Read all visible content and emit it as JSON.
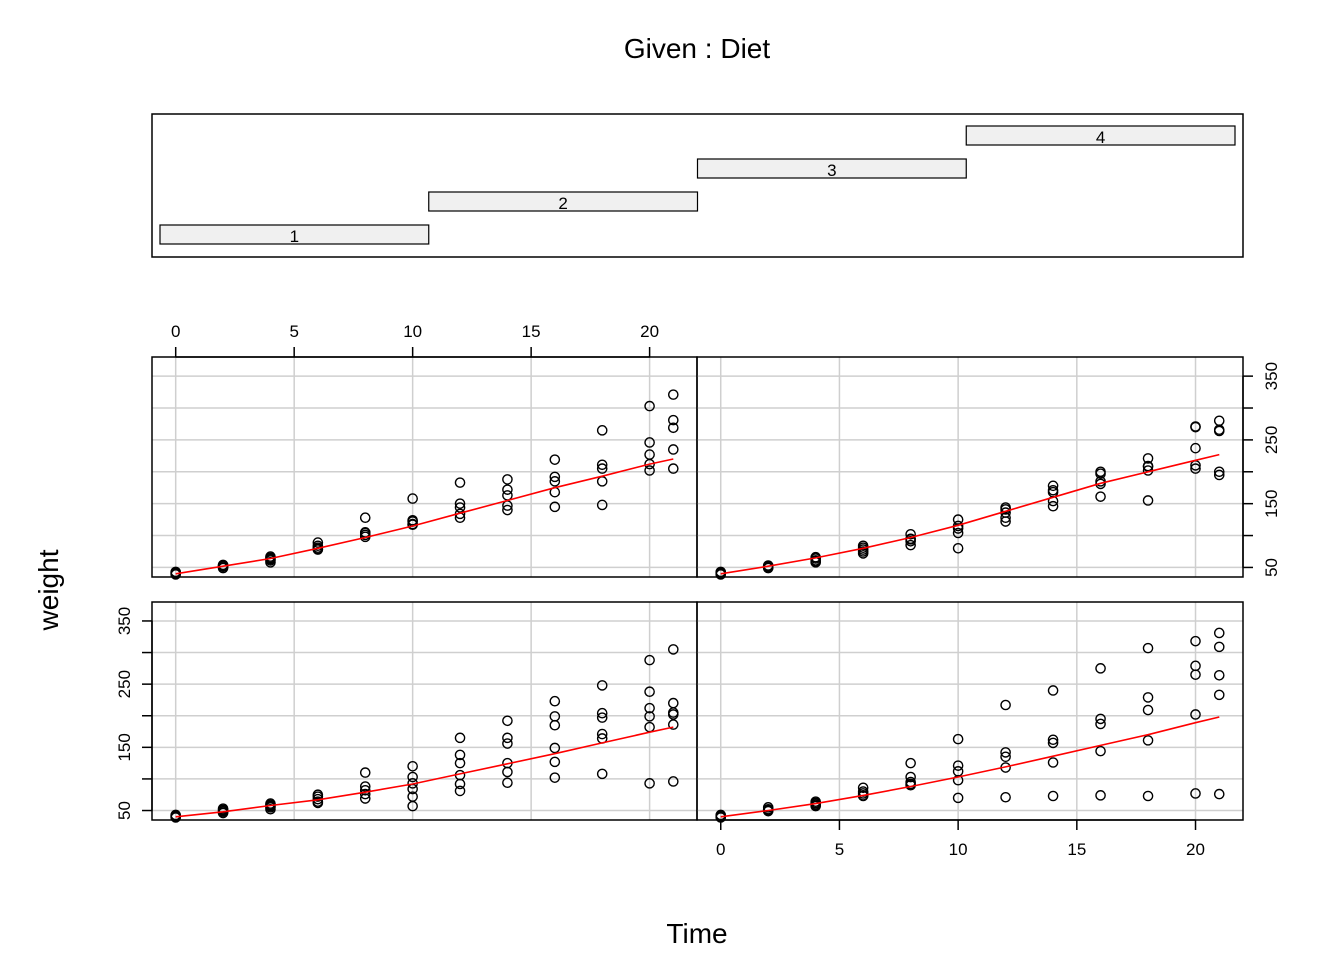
{
  "chart_data": {
    "type": "scatter",
    "title": "Given : Diet",
    "xlabel": "Time",
    "ylabel": "weight",
    "xlim": [
      -1,
      22
    ],
    "ylim": [
      35,
      380
    ],
    "x_ticks": [
      0,
      5,
      10,
      15,
      20
    ],
    "y_ticks": [
      50,
      100,
      150,
      200,
      250,
      300,
      350
    ],
    "y_tick_labels": [
      "50",
      "",
      "150",
      "",
      "250",
      "",
      "350"
    ],
    "grid": true,
    "fit_color": "#ff0000",
    "conditioning": {
      "variable": "Diet",
      "levels": [
        "1",
        "2",
        "3",
        "4"
      ]
    },
    "panels": [
      {
        "diet": "1",
        "points": [
          [
            0,
            42
          ],
          [
            0,
            41
          ],
          [
            0,
            39
          ],
          [
            0,
            40
          ],
          [
            0,
            43
          ],
          [
            2,
            51
          ],
          [
            2,
            49
          ],
          [
            2,
            47
          ],
          [
            2,
            53
          ],
          [
            2,
            46
          ],
          [
            4,
            59
          ],
          [
            4,
            61
          ],
          [
            4,
            55
          ],
          [
            4,
            52
          ],
          [
            4,
            57
          ],
          [
            6,
            64
          ],
          [
            6,
            72
          ],
          [
            6,
            68
          ],
          [
            6,
            75
          ],
          [
            6,
            62
          ],
          [
            8,
            76
          ],
          [
            8,
            82
          ],
          [
            8,
            69
          ],
          [
            8,
            88
          ],
          [
            8,
            110
          ],
          [
            10,
            93
          ],
          [
            10,
            84
          ],
          [
            10,
            103
          ],
          [
            10,
            72
          ],
          [
            10,
            120
          ],
          [
            10,
            57
          ],
          [
            12,
            106
          ],
          [
            12,
            92
          ],
          [
            12,
            125
          ],
          [
            12,
            138
          ],
          [
            12,
            165
          ],
          [
            12,
            81
          ],
          [
            14,
            125
          ],
          [
            14,
            111
          ],
          [
            14,
            156
          ],
          [
            14,
            165
          ],
          [
            14,
            192
          ],
          [
            14,
            94
          ],
          [
            16,
            149
          ],
          [
            16,
            127
          ],
          [
            16,
            185
          ],
          [
            16,
            199
          ],
          [
            16,
            223
          ],
          [
            16,
            102
          ],
          [
            18,
            171
          ],
          [
            18,
            164
          ],
          [
            18,
            204
          ],
          [
            18,
            197
          ],
          [
            18,
            248
          ],
          [
            18,
            108
          ],
          [
            20,
            199
          ],
          [
            20,
            182
          ],
          [
            20,
            238
          ],
          [
            20,
            212
          ],
          [
            20,
            288
          ],
          [
            20,
            93
          ],
          [
            21,
            205
          ],
          [
            21,
            202
          ],
          [
            21,
            220
          ],
          [
            21,
            186
          ],
          [
            21,
            305
          ],
          [
            21,
            96
          ]
        ],
        "fit": [
          [
            0,
            40
          ],
          [
            2,
            48
          ],
          [
            4,
            58
          ],
          [
            6,
            67
          ],
          [
            8,
            79
          ],
          [
            10,
            92
          ],
          [
            12,
            108
          ],
          [
            14,
            124
          ],
          [
            16,
            140
          ],
          [
            18,
            157
          ],
          [
            20,
            174
          ],
          [
            21,
            182
          ]
        ]
      },
      {
        "diet": "2",
        "points": [
          [
            0,
            40
          ],
          [
            0,
            41
          ],
          [
            0,
            43
          ],
          [
            0,
            42
          ],
          [
            0,
            39
          ],
          [
            2,
            50
          ],
          [
            2,
            55
          ],
          [
            2,
            52
          ],
          [
            2,
            51
          ],
          [
            2,
            49
          ],
          [
            4,
            62
          ],
          [
            4,
            64
          ],
          [
            4,
            61
          ],
          [
            4,
            57
          ],
          [
            4,
            59
          ],
          [
            6,
            86
          ],
          [
            6,
            77
          ],
          [
            6,
            74
          ],
          [
            6,
            80
          ],
          [
            6,
            73
          ],
          [
            8,
            125
          ],
          [
            8,
            90
          ],
          [
            8,
            103
          ],
          [
            8,
            92
          ],
          [
            8,
            95
          ],
          [
            10,
            163
          ],
          [
            10,
            112
          ],
          [
            10,
            121
          ],
          [
            10,
            98
          ],
          [
            10,
            70
          ],
          [
            12,
            217
          ],
          [
            12,
            135
          ],
          [
            12,
            142
          ],
          [
            12,
            118
          ],
          [
            12,
            71
          ],
          [
            14,
            240
          ],
          [
            14,
            157
          ],
          [
            14,
            162
          ],
          [
            14,
            126
          ],
          [
            14,
            73
          ],
          [
            16,
            275
          ],
          [
            16,
            187
          ],
          [
            16,
            195
          ],
          [
            16,
            144
          ],
          [
            16,
            74
          ],
          [
            18,
            307
          ],
          [
            18,
            229
          ],
          [
            18,
            209
          ],
          [
            18,
            161
          ],
          [
            18,
            73
          ],
          [
            20,
            318
          ],
          [
            20,
            265
          ],
          [
            20,
            279
          ],
          [
            20,
            202
          ],
          [
            20,
            77
          ],
          [
            21,
            331
          ],
          [
            21,
            264
          ],
          [
            21,
            309
          ],
          [
            21,
            233
          ],
          [
            21,
            76
          ]
        ],
        "fit": [
          [
            0,
            40
          ],
          [
            2,
            50
          ],
          [
            4,
            61
          ],
          [
            6,
            74
          ],
          [
            8,
            88
          ],
          [
            10,
            103
          ],
          [
            12,
            119
          ],
          [
            14,
            136
          ],
          [
            16,
            153
          ],
          [
            18,
            170
          ],
          [
            20,
            189
          ],
          [
            21,
            198
          ]
        ]
      },
      {
        "diet": "3",
        "points": [
          [
            0,
            41
          ],
          [
            0,
            42
          ],
          [
            0,
            40
          ],
          [
            0,
            39
          ],
          [
            0,
            43
          ],
          [
            2,
            53
          ],
          [
            2,
            51
          ],
          [
            2,
            49
          ],
          [
            2,
            52
          ],
          [
            2,
            54
          ],
          [
            4,
            65
          ],
          [
            4,
            61
          ],
          [
            4,
            58
          ],
          [
            4,
            63
          ],
          [
            4,
            67
          ],
          [
            6,
            89
          ],
          [
            6,
            79
          ],
          [
            6,
            81
          ],
          [
            6,
            78
          ],
          [
            6,
            84
          ],
          [
            8,
            98
          ],
          [
            8,
            101
          ],
          [
            8,
            104
          ],
          [
            8,
            128
          ],
          [
            8,
            105
          ],
          [
            10,
            117
          ],
          [
            10,
            118
          ],
          [
            10,
            124
          ],
          [
            10,
            158
          ],
          [
            10,
            122
          ],
          [
            12,
            144
          ],
          [
            12,
            134
          ],
          [
            12,
            150
          ],
          [
            12,
            183
          ],
          [
            12,
            128
          ],
          [
            14,
            163
          ],
          [
            14,
            147
          ],
          [
            14,
            172
          ],
          [
            14,
            188
          ],
          [
            14,
            140
          ],
          [
            16,
            185
          ],
          [
            16,
            168
          ],
          [
            16,
            192
          ],
          [
            16,
            219
          ],
          [
            16,
            145
          ],
          [
            18,
            205
          ],
          [
            18,
            185
          ],
          [
            18,
            211
          ],
          [
            18,
            265
          ],
          [
            18,
            148
          ],
          [
            20,
            212
          ],
          [
            20,
            227
          ],
          [
            20,
            246
          ],
          [
            20,
            303
          ],
          [
            20,
            202
          ],
          [
            21,
            205
          ],
          [
            21,
            281
          ],
          [
            21,
            269
          ],
          [
            21,
            321
          ],
          [
            21,
            235
          ]
        ],
        "fit": [
          [
            0,
            40
          ],
          [
            2,
            52
          ],
          [
            4,
            64
          ],
          [
            6,
            80
          ],
          [
            8,
            97
          ],
          [
            10,
            115
          ],
          [
            12,
            135
          ],
          [
            14,
            155
          ],
          [
            16,
            175
          ],
          [
            18,
            193
          ],
          [
            20,
            212
          ],
          [
            21,
            220
          ]
        ]
      },
      {
        "diet": "4",
        "points": [
          [
            0,
            42
          ],
          [
            0,
            40
          ],
          [
            0,
            41
          ],
          [
            0,
            39
          ],
          [
            0,
            43
          ],
          [
            2,
            51
          ],
          [
            2,
            52
          ],
          [
            2,
            50
          ],
          [
            2,
            53
          ],
          [
            2,
            49
          ],
          [
            4,
            61
          ],
          [
            4,
            64
          ],
          [
            4,
            66
          ],
          [
            4,
            59
          ],
          [
            4,
            58
          ],
          [
            6,
            81
          ],
          [
            6,
            84
          ],
          [
            6,
            78
          ],
          [
            6,
            75
          ],
          [
            6,
            72
          ],
          [
            8,
            102
          ],
          [
            8,
            94
          ],
          [
            8,
            95
          ],
          [
            8,
            91
          ],
          [
            8,
            85
          ],
          [
            10,
            115
          ],
          [
            10,
            125
          ],
          [
            10,
            111
          ],
          [
            10,
            104
          ],
          [
            10,
            80
          ],
          [
            12,
            144
          ],
          [
            12,
            141
          ],
          [
            12,
            128
          ],
          [
            12,
            122
          ],
          [
            12,
            136
          ],
          [
            14,
            171
          ],
          [
            14,
            168
          ],
          [
            14,
            154
          ],
          [
            14,
            146
          ],
          [
            14,
            178
          ],
          [
            16,
            185
          ],
          [
            16,
            197
          ],
          [
            16,
            181
          ],
          [
            16,
            161
          ],
          [
            16,
            200
          ],
          [
            18,
            209
          ],
          [
            18,
            208
          ],
          [
            18,
            202
          ],
          [
            18,
            155
          ],
          [
            18,
            221
          ],
          [
            20,
            237
          ],
          [
            20,
            271
          ],
          [
            20,
            270
          ],
          [
            20,
            210
          ],
          [
            20,
            205
          ],
          [
            21,
            264
          ],
          [
            21,
            266
          ],
          [
            21,
            280
          ],
          [
            21,
            200
          ],
          [
            21,
            195
          ]
        ],
        "fit": [
          [
            0,
            40
          ],
          [
            2,
            52
          ],
          [
            4,
            65
          ],
          [
            6,
            80
          ],
          [
            8,
            97
          ],
          [
            10,
            116
          ],
          [
            12,
            138
          ],
          [
            14,
            160
          ],
          [
            16,
            182
          ],
          [
            18,
            200
          ],
          [
            20,
            218
          ],
          [
            21,
            227
          ]
        ]
      }
    ]
  }
}
